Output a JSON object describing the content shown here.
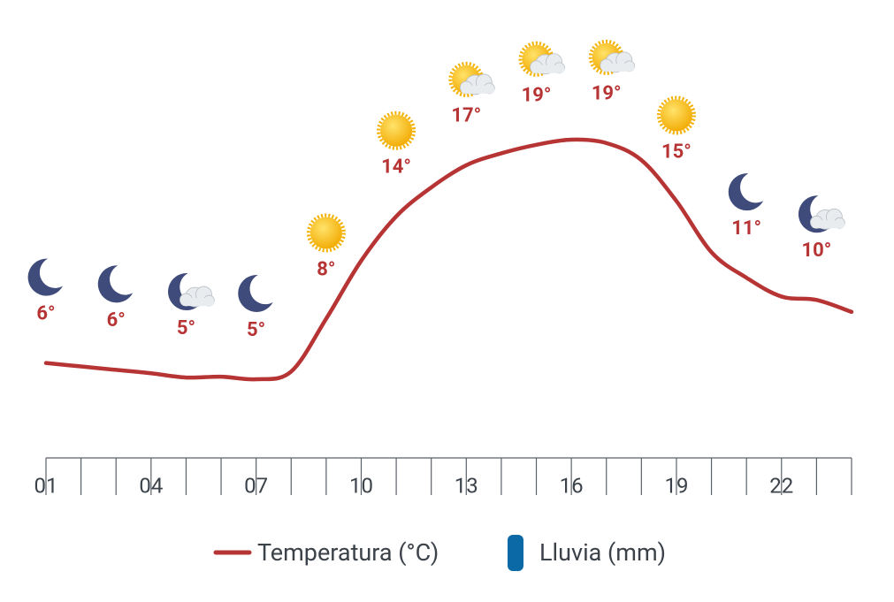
{
  "chart_data": {
    "type": "line",
    "categories": [
      "01",
      null,
      null,
      "04",
      null,
      null,
      "07",
      null,
      null,
      "10",
      null,
      null,
      "13",
      null,
      null,
      "16",
      null,
      null,
      "19",
      null,
      null,
      "22",
      null,
      null
    ],
    "series": [
      {
        "name": "Temperatura (°C)",
        "color": "#b73434",
        "values": [
          5.9,
          5.7,
          5.5,
          5.3,
          5.05,
          5.1,
          4.95,
          5.4,
          8.5,
          11.9,
          14.5,
          16.2,
          17.5,
          18.2,
          18.7,
          19.0,
          18.8,
          17.8,
          15.4,
          12.4,
          10.9,
          9.8,
          9.6,
          8.9
        ]
      }
    ],
    "extra_legend": [
      {
        "name": "Lluvia (mm)",
        "color": "#0b6aa6"
      }
    ],
    "forecast": {
      "values": [
        6,
        6,
        5,
        5,
        8,
        14,
        17,
        19,
        19,
        15,
        11,
        10
      ],
      "value_labels": [
        "6°",
        "6°",
        "5°",
        "5°",
        "8°",
        "14°",
        "17°",
        "19°",
        "19°",
        "15°",
        "11°",
        "10°"
      ],
      "icons": [
        "moon",
        "moon",
        "moon-cloud",
        "moon",
        "sun",
        "sun",
        "sun-cloud",
        "sun-cloud",
        "sun-cloud",
        "sun",
        "moon",
        "moon-cloud"
      ]
    }
  }
}
